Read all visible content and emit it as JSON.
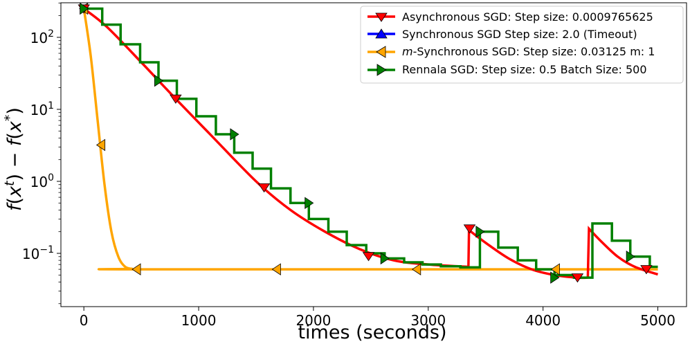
{
  "chart_data": {
    "type": "line",
    "xlabel": "times (seconds)",
    "ylabel": "f(x^t) − f(x^*)",
    "ylabel_parts": {
      "f1": "f",
      "x1": "x",
      "t": "t",
      "mid": ") − ",
      "f2": "f",
      "x2": "x",
      "star": "*"
    },
    "yscale": "log",
    "xlim": [
      -200,
      5250
    ],
    "ylim": [
      0.0182,
      302
    ],
    "x_ticks": [
      0,
      1000,
      2000,
      3000,
      4000,
      5000
    ],
    "x_tick_labels": [
      "0",
      "1000",
      "2000",
      "3000",
      "4000",
      "5000"
    ],
    "y_ticks": [
      {
        "value": 100,
        "base": "10",
        "exp": "2"
      },
      {
        "value": 10,
        "base": "10",
        "exp": "1"
      },
      {
        "value": 1,
        "base": "10",
        "exp": "0"
      },
      {
        "value": 0.1,
        "base": "10",
        "exp": "−1"
      }
    ],
    "legend_position": "top-right",
    "series": [
      {
        "name": "Asynchronous SGD",
        "legend_label": "Asynchronous SGD: Step size: 0.0009765625",
        "color": "#ff0000",
        "marker": "triangle-down",
        "style": "smooth-with-jumps",
        "segments": [
          {
            "x": [
              0,
              200,
              500,
              800,
              1100,
              1500,
              1800,
              2100,
              2400,
              2700,
              3000,
              3350
            ],
            "y": [
              250,
              140,
              45,
              14,
              4.5,
              1.0,
              0.4,
              0.2,
              0.115,
              0.08,
              0.07,
              0.065
            ]
          },
          {
            "x": [
              3350,
              3355,
              3500,
              3700,
              3900,
              4100,
              4300,
              4390
            ],
            "y": [
              0.065,
              0.21,
              0.14,
              0.085,
              0.06,
              0.05,
              0.046,
              0.046
            ]
          },
          {
            "x": [
              4390,
              4400,
              4500,
              4650,
              4800,
              5000
            ],
            "y": [
              0.046,
              0.22,
              0.15,
              0.09,
              0.065,
              0.051
            ]
          }
        ],
        "markers": {
          "x": [
            0,
            800,
            1570,
            2480,
            3360,
            4300,
            4900
          ],
          "y": [
            250,
            14,
            0.82,
            0.091,
            0.22,
            0.046,
            0.06
          ]
        }
      },
      {
        "name": "Synchronous SGD",
        "legend_label": "Synchronous SGD Step size: 2.0 (Timeout)",
        "color": "#0000ff",
        "marker": "triangle-up",
        "style": "none",
        "segments": [],
        "markers": {
          "x": [],
          "y": []
        }
      },
      {
        "name": "m-Synchronous SGD",
        "legend_label_italic": "m",
        "legend_label": "-Synchronous  SGD: Step size: 0.03125 m: 1",
        "color": "#ffa500",
        "marker": "triangle-left",
        "style": "smooth",
        "segments": [
          {
            "x": [
              0,
              60,
              120,
              180,
              240,
              300,
              360,
              420,
              480,
              5000
            ],
            "y": [
              250,
              55,
              7,
              0.9,
              0.2,
              0.09,
              0.065,
              0.061,
              0.06,
              0.06
            ]
          }
        ],
        "markers": {
          "x": [
            0,
            150,
            460,
            1680,
            2900,
            4110
          ],
          "y": [
            250,
            3.2,
            0.06,
            0.06,
            0.06,
            0.06
          ]
        }
      },
      {
        "name": "Rennala SGD",
        "legend_label": "Rennala SGD: Step size: 0.5 Batch Size: 500",
        "color": "#008000",
        "marker": "triangle-right",
        "style": "steps-post",
        "segments": [
          {
            "x": [
              0,
              160,
              320,
              490,
              650,
              810,
              980,
              1150,
              1310,
              1470,
              1630,
              1800,
              1960,
              2130,
              2290,
              2460,
              2620,
              2790,
              2950,
              3110,
              3280,
              3450,
              3610,
              3780,
              3940,
              4100,
              4270,
              4430,
              4600,
              4760,
              4930,
              5000
            ],
            "y": [
              250,
              150,
              80,
              45,
              25,
              14,
              8,
              4.5,
              2.5,
              1.5,
              0.8,
              0.5,
              0.3,
              0.2,
              0.13,
              0.1,
              0.085,
              0.075,
              0.07,
              0.066,
              0.064,
              0.2,
              0.12,
              0.08,
              0.06,
              0.05,
              0.046,
              0.26,
              0.15,
              0.09,
              0.065,
              0.065
            ]
          }
        ],
        "markers": {
          "x": [
            0,
            650,
            1310,
            1960,
            2620,
            3450,
            4100,
            4760
          ],
          "y": [
            250,
            25,
            4.5,
            0.5,
            0.085,
            0.2,
            0.046,
            0.09
          ]
        }
      }
    ]
  }
}
